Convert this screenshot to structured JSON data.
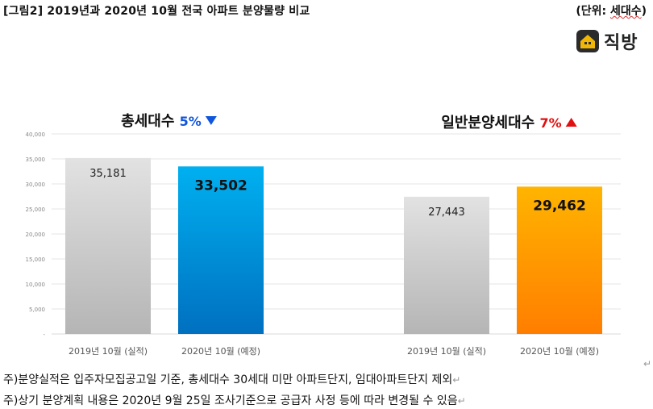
{
  "header": {
    "title": "[그림2] 2019년과 2020년 10월 전국 아파트 분양물량 비교",
    "unit_prefix": "(단위: ",
    "unit_word": "세대수",
    "unit_suffix": ")"
  },
  "logo": {
    "text": "직방",
    "icon": "house-icon"
  },
  "chart_data": {
    "type": "bar",
    "ylim": [
      0,
      40000
    ],
    "y_ticks": [
      "-",
      "5,000",
      "10,000",
      "15,000",
      "20,000",
      "25,000",
      "30,000",
      "35,000",
      "40,000"
    ],
    "groups": [
      {
        "label": "총세대수",
        "change": "5%",
        "change_direction": "down",
        "change_color": "#1155dd",
        "bars": [
          {
            "category": "2019년 10월 (실적)",
            "value": 35181,
            "label": "35,181",
            "highlight": false
          },
          {
            "category": "2020년 10월 (예정)",
            "value": 33502,
            "label": "33,502",
            "highlight": true
          }
        ]
      },
      {
        "label": "일반분양세대수",
        "change": "7%",
        "change_direction": "up",
        "change_color": "#e01010",
        "bars": [
          {
            "category": "2019년 10월 (실적)",
            "value": 27443,
            "label": "27,443",
            "highlight": false
          },
          {
            "category": "2020년 10월 (예정)",
            "value": 29462,
            "label": "29,462",
            "highlight": true
          }
        ]
      }
    ],
    "colors": {
      "gray": "#bdbdbd",
      "blue": "#0a8fe0",
      "orange": "#ff9400"
    }
  },
  "notes": [
    "주)분양실적은 입주자모집공고일 기준, 총세대수 30세대 미만 아파트단지, 임대아파트단지 제외",
    "주)상기 분양계획 내용은 2020년 9월 25일 조사기준으로 공급자 사정 등에 따라 변경될 수 있음"
  ],
  "return_mark": "↵"
}
